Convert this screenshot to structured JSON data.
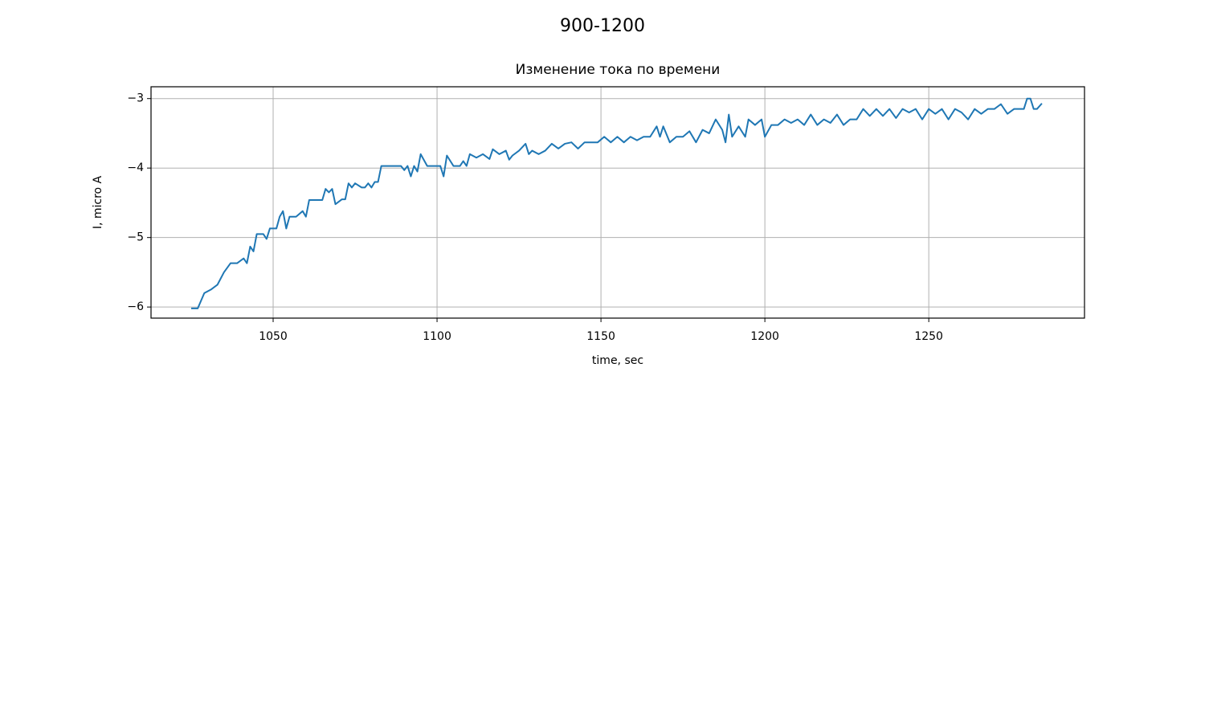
{
  "chart_data": {
    "type": "line",
    "suptitle": "900-1200",
    "title": "Изменение тока по времени",
    "x_label": "time, sec",
    "y_label": "I, micro A",
    "xlim": [
      1012.75,
      1297.5
    ],
    "ylim": [
      -6.16,
      -2.83
    ],
    "xticks": [
      1050,
      1100,
      1150,
      1200,
      1250
    ],
    "yticks": [
      {
        "value": -6,
        "label": "−6"
      },
      {
        "value": -5,
        "label": "−5"
      },
      {
        "value": -4,
        "label": "−4"
      },
      {
        "value": -3,
        "label": "−3"
      }
    ],
    "grid": true,
    "series": [
      {
        "color": "#1f77b4",
        "x": [
          1025,
          1027,
          1029,
          1031,
          1033,
          1035,
          1037,
          1039,
          1041,
          1042,
          1043,
          1044,
          1045,
          1047,
          1048,
          1049,
          1051,
          1052,
          1053,
          1054,
          1055,
          1057,
          1059,
          1060,
          1061,
          1063,
          1065,
          1066,
          1067,
          1068,
          1069,
          1071,
          1072,
          1073,
          1074,
          1075,
          1077,
          1078,
          1079,
          1080,
          1081,
          1082,
          1083,
          1085,
          1087,
          1089,
          1090,
          1091,
          1092,
          1093,
          1094,
          1095,
          1097,
          1099,
          1101,
          1102,
          1103,
          1105,
          1107,
          1108,
          1109,
          1110,
          1112,
          1114,
          1116,
          1117,
          1119,
          1121,
          1122,
          1123,
          1125,
          1127,
          1128,
          1129,
          1131,
          1133,
          1135,
          1137,
          1139,
          1141,
          1143,
          1145,
          1147,
          1149,
          1151,
          1153,
          1155,
          1157,
          1159,
          1161,
          1163,
          1165,
          1167,
          1168,
          1169,
          1171,
          1173,
          1175,
          1177,
          1179,
          1181,
          1183,
          1185,
          1187,
          1188,
          1189,
          1190,
          1192,
          1194,
          1195,
          1197,
          1199,
          1200,
          1202,
          1204,
          1206,
          1208,
          1210,
          1212,
          1214,
          1216,
          1218,
          1220,
          1222,
          1224,
          1226,
          1228,
          1230,
          1232,
          1234,
          1236,
          1238,
          1240,
          1242,
          1244,
          1246,
          1248,
          1250,
          1252,
          1254,
          1256,
          1258,
          1260,
          1262,
          1264,
          1266,
          1268,
          1270,
          1272,
          1274,
          1276,
          1278,
          1279,
          1280,
          1281,
          1282,
          1283,
          1284.5
        ],
        "values": [
          -6.02,
          -6.02,
          -5.8,
          -5.75,
          -5.68,
          -5.5,
          -5.37,
          -5.37,
          -5.3,
          -5.37,
          -5.13,
          -5.2,
          -4.95,
          -4.95,
          -5.02,
          -4.87,
          -4.87,
          -4.7,
          -4.62,
          -4.87,
          -4.7,
          -4.7,
          -4.62,
          -4.7,
          -4.46,
          -4.46,
          -4.46,
          -4.3,
          -4.35,
          -4.3,
          -4.52,
          -4.45,
          -4.45,
          -4.22,
          -4.28,
          -4.22,
          -4.28,
          -4.28,
          -4.22,
          -4.28,
          -4.2,
          -4.2,
          -3.97,
          -3.97,
          -3.97,
          -3.97,
          -4.03,
          -3.97,
          -4.12,
          -3.97,
          -4.05,
          -3.8,
          -3.97,
          -3.97,
          -3.97,
          -4.12,
          -3.82,
          -3.97,
          -3.97,
          -3.9,
          -3.97,
          -3.8,
          -3.85,
          -3.8,
          -3.87,
          -3.73,
          -3.8,
          -3.75,
          -3.88,
          -3.82,
          -3.75,
          -3.65,
          -3.8,
          -3.75,
          -3.8,
          -3.75,
          -3.65,
          -3.72,
          -3.65,
          -3.63,
          -3.72,
          -3.63,
          -3.63,
          -3.63,
          -3.55,
          -3.63,
          -3.55,
          -3.63,
          -3.55,
          -3.6,
          -3.55,
          -3.55,
          -3.4,
          -3.55,
          -3.4,
          -3.63,
          -3.55,
          -3.55,
          -3.47,
          -3.63,
          -3.45,
          -3.5,
          -3.3,
          -3.45,
          -3.63,
          -3.23,
          -3.55,
          -3.4,
          -3.55,
          -3.3,
          -3.38,
          -3.3,
          -3.55,
          -3.38,
          -3.38,
          -3.3,
          -3.35,
          -3.3,
          -3.38,
          -3.23,
          -3.38,
          -3.3,
          -3.35,
          -3.23,
          -3.38,
          -3.3,
          -3.3,
          -3.15,
          -3.25,
          -3.15,
          -3.25,
          -3.15,
          -3.28,
          -3.15,
          -3.2,
          -3.15,
          -3.3,
          -3.15,
          -3.22,
          -3.15,
          -3.3,
          -3.15,
          -3.2,
          -3.3,
          -3.15,
          -3.22,
          -3.15,
          -3.15,
          -3.08,
          -3.22,
          -3.15,
          -3.15,
          -3.15,
          -3.0,
          -3.0,
          -3.15,
          -3.15,
          -3.07
        ]
      }
    ]
  }
}
